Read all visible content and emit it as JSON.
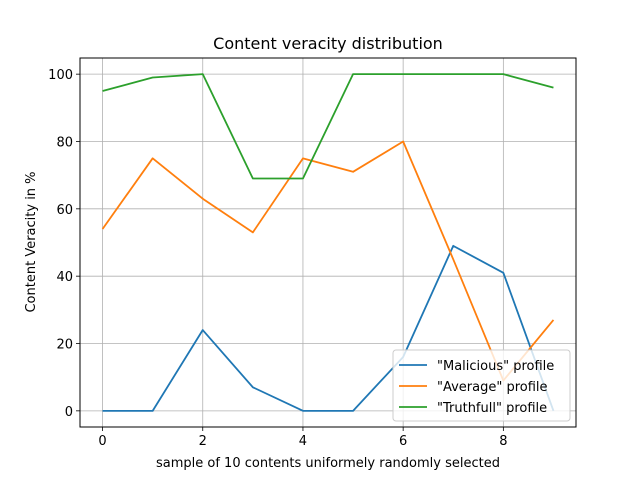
{
  "chart_data": {
    "type": "line",
    "title": "Content veracity distribution",
    "xlabel": "sample of 10 contents uniformely randomly selected",
    "ylabel": "Content Veracity in %",
    "x": [
      0,
      1,
      2,
      3,
      4,
      5,
      6,
      7,
      8,
      9
    ],
    "xlim": [
      -0.45,
      9.45
    ],
    "ylim": [
      -4.8,
      104.8
    ],
    "xticks": [
      0,
      2,
      4,
      6,
      8
    ],
    "yticks": [
      0,
      20,
      40,
      60,
      80,
      100
    ],
    "grid": true,
    "legend_position": "lower right",
    "series": [
      {
        "name": "\"Malicious\" profile",
        "color": "#1f77b4",
        "values": [
          0,
          0,
          24,
          7,
          0,
          0,
          16,
          49,
          41,
          0
        ]
      },
      {
        "name": "\"Average\" profile",
        "color": "#ff7f0e",
        "values": [
          54,
          75,
          63,
          53,
          75,
          71,
          80,
          45,
          9,
          27
        ]
      },
      {
        "name": "\"Truthfull\" profile",
        "color": "#2ca02c",
        "values": [
          95,
          99,
          100,
          69,
          69,
          100,
          100,
          100,
          100,
          96
        ]
      }
    ]
  }
}
